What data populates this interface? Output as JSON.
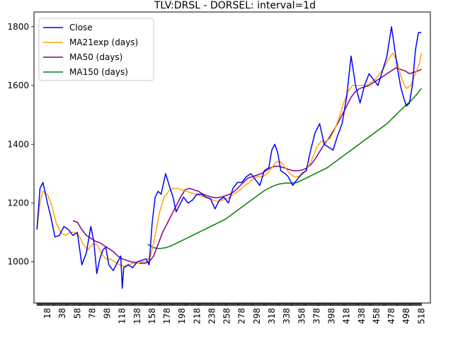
{
  "chart_data": {
    "type": "line",
    "title": "TLV:DRSL - DORSEL: interval=1d",
    "xlabel": "",
    "ylabel": "",
    "xlim": [
      0,
      530
    ],
    "ylim": [
      860,
      1850
    ],
    "x_ticks": [
      18,
      38,
      58,
      78,
      98,
      118,
      138,
      158,
      178,
      198,
      218,
      238,
      258,
      278,
      298,
      318,
      338,
      358,
      378,
      398,
      418,
      438,
      458,
      478,
      498,
      518
    ],
    "y_ticks": [
      1000,
      1200,
      1400,
      1600,
      1800
    ],
    "grid": false,
    "legend_position": "upper-left",
    "series": [
      {
        "name": "Close",
        "color": "#0000ff",
        "x": [
          4,
          8,
          12,
          18,
          22,
          28,
          34,
          40,
          46,
          52,
          58,
          64,
          70,
          76,
          80,
          84,
          88,
          92,
          96,
          100,
          106,
          112,
          116,
          118,
          120,
          126,
          132,
          138,
          144,
          150,
          154,
          158,
          162,
          166,
          170,
          176,
          182,
          186,
          190,
          194,
          200,
          206,
          212,
          218,
          224,
          230,
          236,
          242,
          248,
          254,
          260,
          266,
          272,
          278,
          284,
          290,
          296,
          302,
          308,
          314,
          318,
          322,
          326,
          330,
          336,
          340,
          346,
          352,
          358,
          364,
          370,
          376,
          382,
          388,
          394,
          400,
          406,
          412,
          418,
          424,
          430,
          436,
          442,
          448,
          454,
          460,
          466,
          472,
          478,
          482,
          486,
          490,
          494,
          498,
          502,
          506,
          510,
          514,
          518
        ],
        "y": [
          1110,
          1250,
          1270,
          1200,
          1160,
          1085,
          1090,
          1120,
          1110,
          1090,
          1100,
          990,
          1030,
          1120,
          1070,
          960,
          1010,
          1040,
          1050,
          990,
          970,
          1000,
          1020,
          910,
          980,
          990,
          980,
          1000,
          1005,
          1010,
          990,
          1130,
          1220,
          1240,
          1230,
          1300,
          1250,
          1220,
          1170,
          1190,
          1220,
          1200,
          1210,
          1230,
          1230,
          1220,
          1215,
          1180,
          1210,
          1220,
          1200,
          1250,
          1270,
          1270,
          1290,
          1300,
          1280,
          1260,
          1310,
          1320,
          1380,
          1400,
          1370,
          1310,
          1300,
          1290,
          1260,
          1280,
          1300,
          1310,
          1380,
          1440,
          1470,
          1400,
          1390,
          1380,
          1430,
          1470,
          1560,
          1700,
          1600,
          1540,
          1600,
          1640,
          1620,
          1600,
          1650,
          1700,
          1800,
          1730,
          1660,
          1600,
          1560,
          1530,
          1540,
          1600,
          1720,
          1780,
          1780
        ]
      },
      {
        "name": "MA21exp (days)",
        "color": "#ffa500",
        "x": [
          4,
          8,
          12,
          18,
          24,
          30,
          36,
          42,
          48,
          54,
          60,
          66,
          72,
          78,
          84,
          90,
          96,
          102,
          108,
          114,
          120,
          126,
          132,
          138,
          144,
          150,
          156,
          162,
          168,
          174,
          180,
          186,
          192,
          198,
          204,
          210,
          216,
          222,
          228,
          234,
          240,
          246,
          252,
          258,
          264,
          270,
          276,
          282,
          288,
          294,
          300,
          306,
          312,
          318,
          324,
          330,
          336,
          342,
          348,
          354,
          360,
          366,
          372,
          378,
          384,
          390,
          396,
          402,
          408,
          414,
          420,
          426,
          432,
          438,
          444,
          450,
          456,
          462,
          468,
          474,
          480,
          486,
          492,
          498,
          504,
          510,
          516,
          518
        ],
        "y": [
          1110,
          1200,
          1240,
          1230,
          1190,
          1130,
          1100,
          1090,
          1100,
          1100,
          1090,
          1060,
          1040,
          1060,
          1060,
          1030,
          1010,
          1010,
          1000,
          990,
          985,
          990,
          995,
          995,
          1000,
          1000,
          1020,
          1090,
          1170,
          1220,
          1240,
          1250,
          1250,
          1245,
          1240,
          1235,
          1230,
          1225,
          1220,
          1215,
          1210,
          1205,
          1210,
          1215,
          1225,
          1235,
          1245,
          1260,
          1270,
          1285,
          1290,
          1290,
          1300,
          1320,
          1340,
          1340,
          1320,
          1300,
          1290,
          1290,
          1300,
          1320,
          1350,
          1390,
          1410,
          1410,
          1420,
          1450,
          1490,
          1540,
          1580,
          1600,
          1600,
          1600,
          1600,
          1610,
          1620,
          1640,
          1660,
          1690,
          1710,
          1680,
          1620,
          1590,
          1600,
          1640,
          1680,
          1710
        ]
      },
      {
        "name": "MA50 (days)",
        "color": "#800080",
        "x": [
          52,
          58,
          64,
          70,
          76,
          82,
          88,
          94,
          100,
          106,
          112,
          118,
          124,
          130,
          136,
          142,
          148,
          154,
          160,
          166,
          172,
          178,
          184,
          190,
          196,
          202,
          208,
          214,
          220,
          226,
          232,
          238,
          244,
          250,
          256,
          262,
          268,
          274,
          280,
          286,
          292,
          298,
          304,
          310,
          316,
          322,
          328,
          334,
          340,
          346,
          352,
          358,
          364,
          370,
          376,
          382,
          388,
          394,
          400,
          406,
          412,
          418,
          424,
          430,
          436,
          442,
          448,
          454,
          460,
          466,
          472,
          478,
          484,
          490,
          496,
          502,
          508,
          514,
          518
        ],
        "y": [
          1140,
          1135,
          1110,
          1090,
          1080,
          1070,
          1065,
          1055,
          1045,
          1035,
          1020,
          1010,
          1005,
          1000,
          998,
          995,
          995,
          1000,
          1020,
          1060,
          1100,
          1130,
          1160,
          1190,
          1220,
          1245,
          1250,
          1245,
          1240,
          1230,
          1225,
          1220,
          1218,
          1220,
          1225,
          1230,
          1240,
          1255,
          1270,
          1285,
          1290,
          1295,
          1300,
          1310,
          1320,
          1325,
          1325,
          1320,
          1315,
          1310,
          1310,
          1312,
          1318,
          1330,
          1350,
          1375,
          1400,
          1420,
          1445,
          1470,
          1500,
          1530,
          1560,
          1580,
          1590,
          1595,
          1600,
          1610,
          1620,
          1630,
          1640,
          1650,
          1660,
          1655,
          1650,
          1640,
          1645,
          1650,
          1655
        ]
      },
      {
        "name": "MA150 (days)",
        "color": "#008000",
        "x": [
          152,
          160,
          168,
          176,
          184,
          192,
          200,
          208,
          216,
          224,
          232,
          240,
          248,
          256,
          264,
          272,
          280,
          288,
          296,
          304,
          312,
          320,
          328,
          336,
          344,
          352,
          360,
          368,
          376,
          384,
          392,
          400,
          408,
          416,
          424,
          432,
          440,
          448,
          456,
          464,
          472,
          480,
          488,
          496,
          504,
          512,
          518
        ],
        "y": [
          1060,
          1048,
          1045,
          1048,
          1055,
          1065,
          1075,
          1085,
          1095,
          1105,
          1115,
          1125,
          1135,
          1145,
          1160,
          1175,
          1190,
          1205,
          1220,
          1235,
          1248,
          1258,
          1265,
          1268,
          1268,
          1270,
          1280,
          1290,
          1300,
          1310,
          1320,
          1335,
          1350,
          1365,
          1380,
          1395,
          1410,
          1425,
          1440,
          1455,
          1470,
          1490,
          1510,
          1530,
          1548,
          1570,
          1590
        ]
      }
    ]
  }
}
